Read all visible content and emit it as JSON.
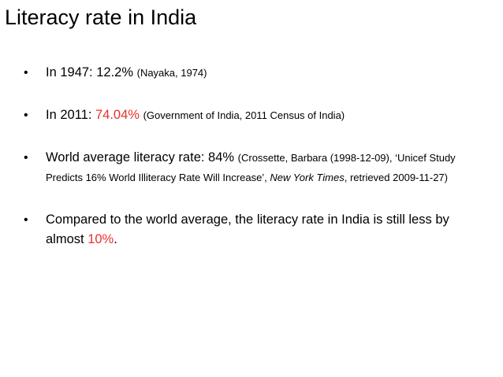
{
  "title": "Literacy rate in India",
  "colors": {
    "highlight": "#e8302a",
    "text": "#000000",
    "background": "#ffffff"
  },
  "bullets": [
    {
      "main": "In 1947: 12.2%",
      "source": "(Nayaka, 1974)"
    },
    {
      "main_prefix": "In 2011: ",
      "main_highlight": "74.04%",
      "source": "(Government of India, 2011 Census of India)"
    },
    {
      "main": "World average literacy rate: 84%",
      "source_part1": "(Crossette, Barbara (1998-12-09), ‘Unicef Study Predicts 16% World Illiteracy Rate Will Increase’, ",
      "source_italic": "New York Times",
      "source_part2": ", retrieved 2009-11-27)"
    },
    {
      "main_prefix": "Compared to the world average, the literacy rate in India is still less by almost ",
      "main_highlight": "10%",
      "main_suffix": "."
    }
  ]
}
